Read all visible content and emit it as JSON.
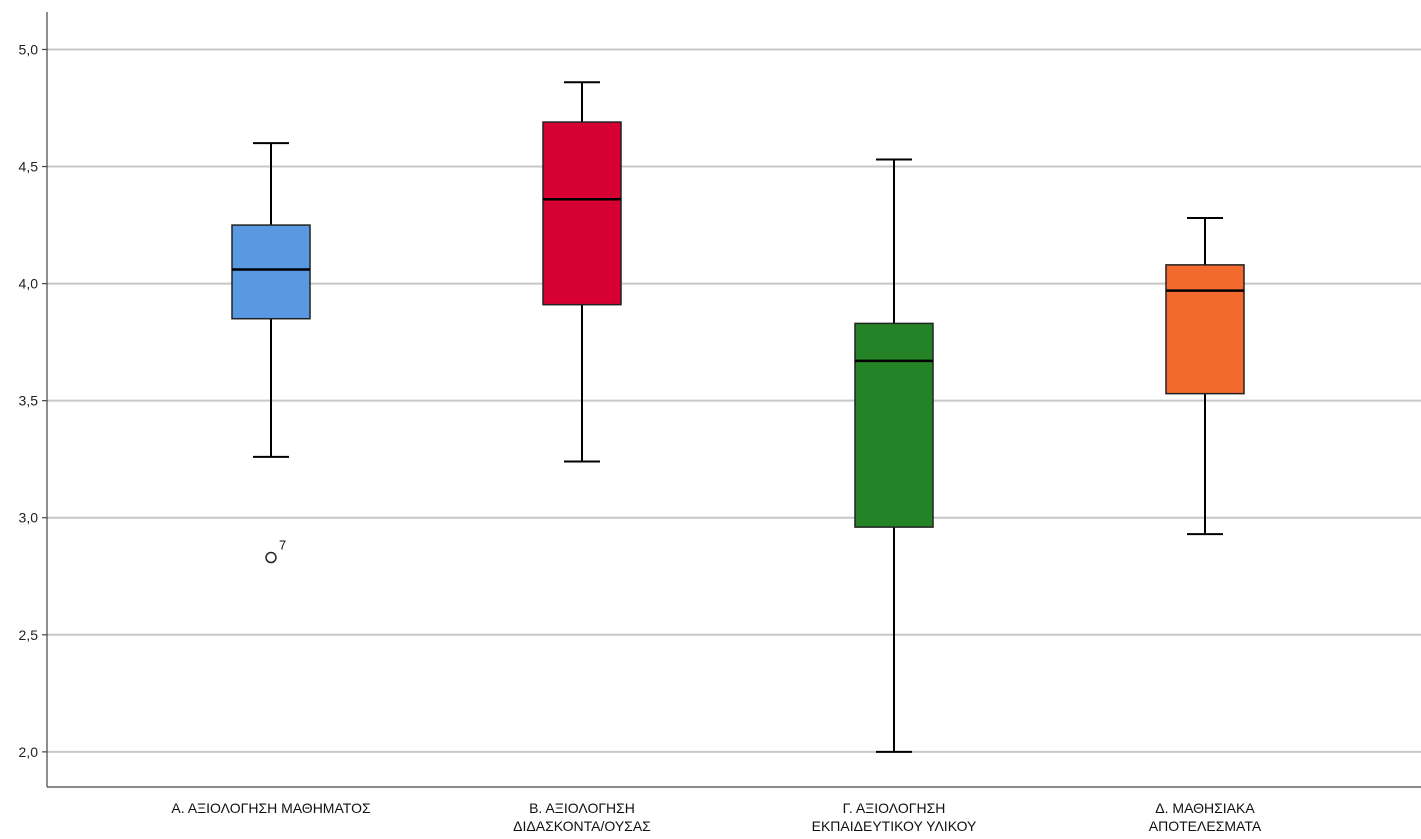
{
  "chart_data": {
    "type": "boxplot",
    "title": "",
    "xlabel": "",
    "ylabel": "",
    "ylim": [
      1.85,
      5.16
    ],
    "yticks": [
      "2,0",
      "2,5",
      "3,0",
      "3,5",
      "4,0",
      "4,5",
      "5,0"
    ],
    "ytick_values": [
      2.0,
      2.5,
      3.0,
      3.5,
      4.0,
      4.5,
      5.0
    ],
    "grid": true,
    "categories": [
      {
        "label_lines": [
          "Α. ΑΞΙΟΛΟΓΗΣΗ ΜΑΘΗΜΑΤΟΣ"
        ],
        "color": "#5899e2",
        "min": 3.26,
        "q1": 3.85,
        "median": 4.06,
        "q3": 4.25,
        "max": 4.6,
        "outliers": [
          {
            "value": 2.83,
            "label": "7"
          }
        ]
      },
      {
        "label_lines": [
          "Β. ΑΞΙΟΛΟΓΗΣΗ",
          "ΔΙΔΑΣΚΟΝΤΑ/ΟΥΣΑΣ"
        ],
        "color": "#d60032",
        "min": 3.24,
        "q1": 3.91,
        "median": 4.36,
        "q3": 4.69,
        "max": 4.86,
        "outliers": []
      },
      {
        "label_lines": [
          "Γ. ΑΞΙΟΛΟΓΗΣΗ",
          "ΕΚΠΑΙΔΕΥΤΙΚΟΥ ΥΛΙΚΟΥ"
        ],
        "color": "#248327",
        "min": 2.0,
        "q1": 2.96,
        "median": 3.67,
        "q3": 3.83,
        "max": 4.53,
        "outliers": []
      },
      {
        "label_lines": [
          "Δ. ΜΑΘΗΣΙΑΚΑ",
          "ΑΠΟΤΕΛΕΣΜΑΤΑ"
        ],
        "color": "#f26a2e",
        "min": 2.93,
        "q1": 3.53,
        "median": 3.97,
        "q3": 4.08,
        "max": 4.28,
        "outliers": []
      }
    ]
  }
}
